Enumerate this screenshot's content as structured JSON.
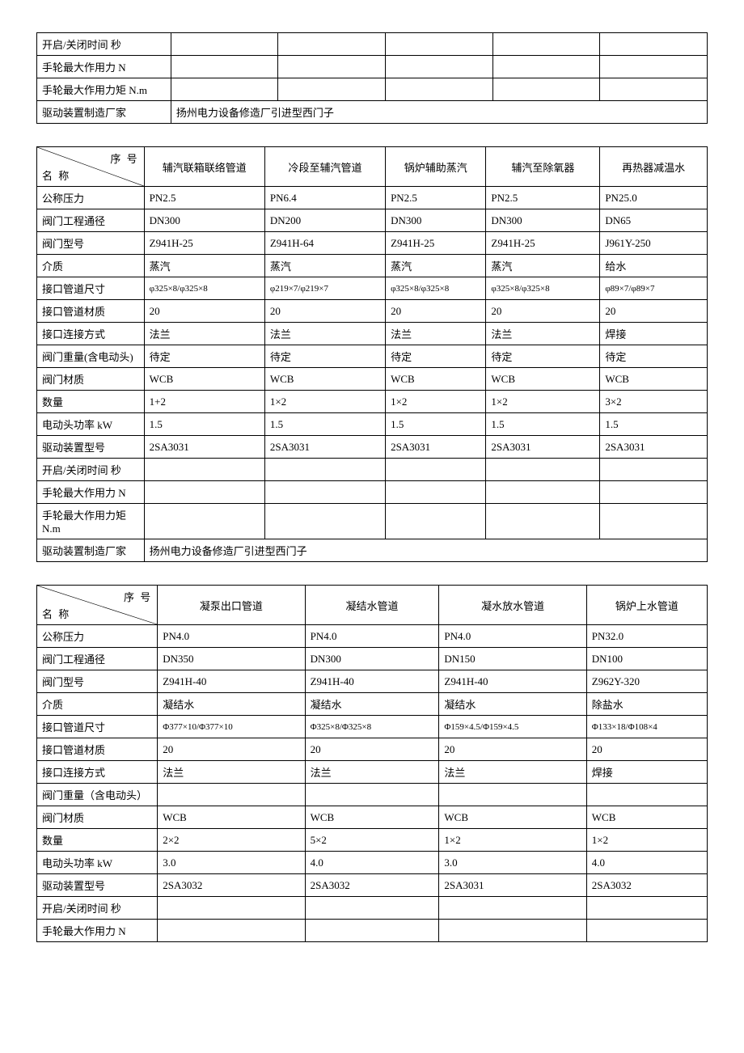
{
  "diag_top": "序 号",
  "diag_bottom": "名 称",
  "table1": {
    "col_widths": [
      "20%",
      "16%",
      "16%",
      "16%",
      "16%",
      "16%"
    ],
    "rows": [
      [
        "开启/关闭时间   秒",
        "",
        "",
        "",
        "",
        ""
      ],
      [
        "手轮最大作用力 N",
        "",
        "",
        "",
        "",
        ""
      ],
      [
        "手轮最大作用力矩 N.m",
        "",
        "",
        "",
        "",
        ""
      ]
    ],
    "footer_label": "驱动装置制造厂家",
    "footer_value": "扬州电力设备修造厂引进型西门子"
  },
  "table2": {
    "col_widths": [
      "16%",
      "18%",
      "18%",
      "15%",
      "17%",
      "16%"
    ],
    "headers": [
      "辅汽联箱联络管道",
      "冷段至辅汽管道",
      "锅炉辅助蒸汽",
      "辅汽至除氧器",
      "再热器减温水"
    ],
    "rows": [
      [
        "公称压力",
        "PN2.5",
        "PN6.4",
        "PN2.5",
        "PN2.5",
        "PN25.0"
      ],
      [
        "阀门工程通径",
        "DN300",
        "DN200",
        "DN300",
        "DN300",
        "DN65"
      ],
      [
        "阀门型号",
        "Z941H-25",
        "Z941H-64",
        "Z941H-25",
        "Z941H-25",
        "J961Y-250"
      ],
      [
        "介质",
        "蒸汽",
        "蒸汽",
        "蒸汽",
        "蒸汽",
        "给水"
      ],
      [
        "接口管道尺寸",
        "φ325×8/φ325×8",
        "φ219×7/φ219×7",
        "φ325×8/φ325×8",
        "φ325×8/φ325×8",
        "φ89×7/φ89×7"
      ],
      [
        "接口管道材质",
        "20",
        "20",
        "20",
        "20",
        "20"
      ],
      [
        "接口连接方式",
        "法兰",
        "法兰",
        "法兰",
        "法兰",
        "焊接"
      ],
      [
        "阀门重量(含电动头)",
        "待定",
        "待定",
        "待定",
        "待定",
        "待定"
      ],
      [
        "阀门材质",
        "WCB",
        "WCB",
        "WCB",
        "WCB",
        "WCB"
      ],
      [
        "数量",
        "1+2",
        "1×2",
        "1×2",
        "1×2",
        "3×2"
      ],
      [
        "电动头功率 kW",
        "1.5",
        "1.5",
        "1.5",
        "1.5",
        "1.5"
      ],
      [
        "驱动装置型号",
        "2SA3031",
        "2SA3031",
        "2SA3031",
        "2SA3031",
        "2SA3031"
      ],
      [
        "开启/关闭时间 秒",
        "",
        "",
        "",
        "",
        ""
      ],
      [
        "手轮最大作用力 N",
        "",
        "",
        "",
        "",
        ""
      ],
      [
        "手轮最大作用力矩 N.m",
        "",
        "",
        "",
        "",
        ""
      ]
    ],
    "small_rows": [
      4
    ],
    "footer_label": "驱动装置制造厂家",
    "footer_value": "扬州电力设备修造厂引进型西门子"
  },
  "table3": {
    "col_widths": [
      "18%",
      "22%",
      "20%",
      "22%",
      "18%"
    ],
    "headers": [
      "凝泵出口管道",
      "凝结水管道",
      "凝水放水管道",
      "锅炉上水管道"
    ],
    "rows": [
      [
        "公称压力",
        "PN4.0",
        "PN4.0",
        "PN4.0",
        "PN32.0"
      ],
      [
        "阀门工程通径",
        "DN350",
        "DN300",
        "DN150",
        "DN100"
      ],
      [
        "阀门型号",
        "Z941H-40",
        "Z941H-40",
        "Z941H-40",
        "Z962Y-320"
      ],
      [
        "介质",
        "凝结水",
        "凝结水",
        "凝结水",
        "除盐水"
      ],
      [
        "接口管道尺寸",
        "Φ377×10/Φ377×10",
        "Φ325×8/Φ325×8",
        "Φ159×4.5/Φ159×4.5",
        "Φ133×18/Φ108×4"
      ],
      [
        "接口管道材质",
        "20",
        "20",
        "20",
        "20"
      ],
      [
        "接口连接方式",
        "法兰",
        "法兰",
        "法兰",
        "焊接"
      ],
      [
        "阀门重量（含电动头）",
        "",
        "",
        "",
        ""
      ],
      [
        "阀门材质",
        "WCB",
        "WCB",
        "WCB",
        "WCB"
      ],
      [
        "数量",
        "2×2",
        "5×2",
        "1×2",
        "1×2"
      ],
      [
        "电动头功率 kW",
        "3.0",
        "4.0",
        "3.0",
        "4.0"
      ],
      [
        "驱动装置型号",
        "2SA3032",
        "2SA3032",
        "2SA3031",
        "2SA3032"
      ],
      [
        "开启/关闭时间     秒",
        "",
        "",
        "",
        ""
      ],
      [
        "手轮最大作用力   N",
        "",
        "",
        "",
        ""
      ]
    ],
    "small_rows": [
      4
    ]
  }
}
